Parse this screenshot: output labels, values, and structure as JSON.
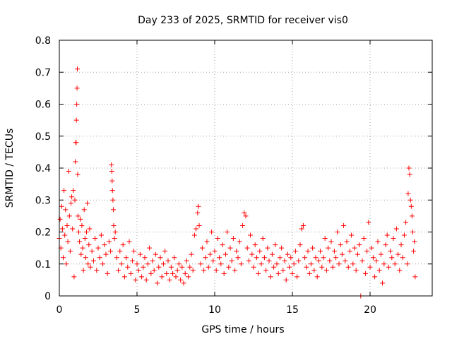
{
  "chart_data": {
    "type": "scatter",
    "title": "Day 233 of 2025, SRMTID for receiver vis0",
    "xlabel": "GPS time / hours",
    "ylabel": "SRMTID / TECUs",
    "xlim": [
      0,
      24
    ],
    "ylim": [
      0,
      0.8
    ],
    "grid": true,
    "marker": "+",
    "series_color": "#ff0000",
    "x_ticks": [
      0,
      5,
      10,
      15,
      20
    ],
    "x_tick_labels": [
      "0",
      "5",
      "10",
      "15",
      "20"
    ],
    "y_ticks": [
      0,
      0.1,
      0.2,
      0.3,
      0.4,
      0.5,
      0.6,
      0.7,
      0.8
    ],
    "y_tick_labels": [
      "0",
      "0.1",
      "0.2",
      "0.3",
      "0.4",
      "0.5",
      "0.6",
      "0.7",
      "0.8"
    ],
    "series": [
      {
        "name": "SRMTID",
        "points": [
          [
            0.0,
            0.18
          ],
          [
            0.05,
            0.24
          ],
          [
            0.1,
            0.15
          ],
          [
            0.15,
            0.28
          ],
          [
            0.2,
            0.21
          ],
          [
            0.25,
            0.12
          ],
          [
            0.3,
            0.33
          ],
          [
            0.35,
            0.19
          ],
          [
            0.4,
            0.27
          ],
          [
            0.45,
            0.1
          ],
          [
            0.5,
            0.22
          ],
          [
            0.55,
            0.17
          ],
          [
            0.6,
            0.39
          ],
          [
            0.65,
            0.25
          ],
          [
            0.7,
            0.14
          ],
          [
            0.75,
            0.29
          ],
          [
            0.8,
            0.31
          ],
          [
            0.85,
            0.21
          ],
          [
            0.9,
            0.33
          ],
          [
            0.95,
            0.06
          ],
          [
            1.0,
            0.3
          ],
          [
            1.03,
            0.42
          ],
          [
            1.06,
            0.48
          ],
          [
            1.08,
            0.48
          ],
          [
            1.1,
            0.55
          ],
          [
            1.12,
            0.6
          ],
          [
            1.14,
            0.65
          ],
          [
            1.16,
            0.71
          ],
          [
            1.18,
            0.38
          ],
          [
            1.2,
            0.25
          ],
          [
            1.25,
            0.2
          ],
          [
            1.3,
            0.17
          ],
          [
            1.35,
            0.24
          ],
          [
            1.4,
            0.13
          ],
          [
            1.45,
            0.22
          ],
          [
            1.5,
            0.15
          ],
          [
            1.55,
            0.08
          ],
          [
            1.6,
            0.27
          ],
          [
            1.65,
            0.18
          ],
          [
            1.7,
            0.12
          ],
          [
            1.75,
            0.2
          ],
          [
            1.8,
            0.29
          ],
          [
            1.85,
            0.1
          ],
          [
            1.9,
            0.16
          ],
          [
            1.95,
            0.21
          ],
          [
            2.0,
            0.09
          ],
          [
            2.1,
            0.14
          ],
          [
            2.2,
            0.11
          ],
          [
            2.3,
            0.18
          ],
          [
            2.4,
            0.08
          ],
          [
            2.5,
            0.15
          ],
          [
            2.6,
            0.12
          ],
          [
            2.7,
            0.19
          ],
          [
            2.8,
            0.1
          ],
          [
            2.9,
            0.16
          ],
          [
            3.0,
            0.13
          ],
          [
            3.1,
            0.07
          ],
          [
            3.2,
            0.17
          ],
          [
            3.3,
            0.14
          ],
          [
            3.35,
            0.41
          ],
          [
            3.38,
            0.39
          ],
          [
            3.4,
            0.36
          ],
          [
            3.42,
            0.33
          ],
          [
            3.45,
            0.3
          ],
          [
            3.48,
            0.27
          ],
          [
            3.5,
            0.22
          ],
          [
            3.55,
            0.18
          ],
          [
            3.6,
            0.2
          ],
          [
            3.7,
            0.12
          ],
          [
            3.8,
            0.08
          ],
          [
            3.9,
            0.14
          ],
          [
            4.0,
            0.1
          ],
          [
            4.1,
            0.16
          ],
          [
            4.2,
            0.06
          ],
          [
            4.3,
            0.12
          ],
          [
            4.4,
            0.09
          ],
          [
            4.5,
            0.17
          ],
          [
            4.6,
            0.07
          ],
          [
            4.7,
            0.11
          ],
          [
            4.8,
            0.14
          ],
          [
            4.9,
            0.05
          ],
          [
            5.0,
            0.1
          ],
          [
            5.1,
            0.08
          ],
          [
            5.2,
            0.13
          ],
          [
            5.3,
            0.06
          ],
          [
            5.4,
            0.09
          ],
          [
            5.5,
            0.12
          ],
          [
            5.6,
            0.05
          ],
          [
            5.7,
            0.1
          ],
          [
            5.8,
            0.15
          ],
          [
            5.9,
            0.07
          ],
          [
            6.0,
            0.11
          ],
          [
            6.1,
            0.08
          ],
          [
            6.2,
            0.13
          ],
          [
            6.3,
            0.04
          ],
          [
            6.4,
            0.09
          ],
          [
            6.5,
            0.12
          ],
          [
            6.6,
            0.06
          ],
          [
            6.7,
            0.1
          ],
          [
            6.8,
            0.14
          ],
          [
            6.9,
            0.07
          ],
          [
            7.0,
            0.11
          ],
          [
            7.1,
            0.05
          ],
          [
            7.2,
            0.09
          ],
          [
            7.3,
            0.07
          ],
          [
            7.4,
            0.12
          ],
          [
            7.5,
            0.06
          ],
          [
            7.6,
            0.08
          ],
          [
            7.7,
            0.1
          ],
          [
            7.8,
            0.05
          ],
          [
            7.9,
            0.09
          ],
          [
            8.0,
            0.04
          ],
          [
            8.1,
            0.07
          ],
          [
            8.2,
            0.11
          ],
          [
            8.3,
            0.06
          ],
          [
            8.4,
            0.09
          ],
          [
            8.5,
            0.13
          ],
          [
            8.6,
            0.08
          ],
          [
            8.7,
            0.19
          ],
          [
            8.8,
            0.21
          ],
          [
            8.9,
            0.26
          ],
          [
            8.95,
            0.28
          ],
          [
            9.0,
            0.22
          ],
          [
            9.1,
            0.1
          ],
          [
            9.2,
            0.15
          ],
          [
            9.3,
            0.08
          ],
          [
            9.4,
            0.12
          ],
          [
            9.5,
            0.17
          ],
          [
            9.6,
            0.09
          ],
          [
            9.7,
            0.13
          ],
          [
            9.8,
            0.2
          ],
          [
            9.9,
            0.11
          ],
          [
            10.0,
            0.14
          ],
          [
            10.1,
            0.08
          ],
          [
            10.2,
            0.18
          ],
          [
            10.3,
            0.12
          ],
          [
            10.4,
            0.1
          ],
          [
            10.5,
            0.16
          ],
          [
            10.6,
            0.07
          ],
          [
            10.7,
            0.13
          ],
          [
            10.8,
            0.2
          ],
          [
            10.9,
            0.09
          ],
          [
            11.0,
            0.15
          ],
          [
            11.1,
            0.11
          ],
          [
            11.2,
            0.18
          ],
          [
            11.3,
            0.08
          ],
          [
            11.4,
            0.14
          ],
          [
            11.5,
            0.12
          ],
          [
            11.6,
            0.17
          ],
          [
            11.7,
            0.1
          ],
          [
            11.8,
            0.22
          ],
          [
            11.9,
            0.26
          ],
          [
            12.0,
            0.25
          ],
          [
            12.1,
            0.15
          ],
          [
            12.2,
            0.11
          ],
          [
            12.3,
            0.19
          ],
          [
            12.4,
            0.13
          ],
          [
            12.5,
            0.09
          ],
          [
            12.6,
            0.16
          ],
          [
            12.7,
            0.12
          ],
          [
            12.8,
            0.07
          ],
          [
            12.9,
            0.14
          ],
          [
            13.0,
            0.1
          ],
          [
            13.1,
            0.18
          ],
          [
            13.2,
            0.12
          ],
          [
            13.3,
            0.08
          ],
          [
            13.4,
            0.15
          ],
          [
            13.5,
            0.11
          ],
          [
            13.6,
            0.06
          ],
          [
            13.7,
            0.13
          ],
          [
            13.8,
            0.09
          ],
          [
            13.9,
            0.16
          ],
          [
            14.0,
            0.1
          ],
          [
            14.1,
            0.07
          ],
          [
            14.2,
            0.12
          ],
          [
            14.3,
            0.15
          ],
          [
            14.4,
            0.08
          ],
          [
            14.5,
            0.11
          ],
          [
            14.6,
            0.05
          ],
          [
            14.7,
            0.13
          ],
          [
            14.8,
            0.09
          ],
          [
            14.9,
            0.12
          ],
          [
            15.0,
            0.07
          ],
          [
            15.1,
            0.1
          ],
          [
            15.2,
            0.14
          ],
          [
            15.3,
            0.06
          ],
          [
            15.4,
            0.11
          ],
          [
            15.5,
            0.16
          ],
          [
            15.6,
            0.21
          ],
          [
            15.7,
            0.22
          ],
          [
            15.8,
            0.12
          ],
          [
            15.9,
            0.09
          ],
          [
            16.0,
            0.14
          ],
          [
            16.1,
            0.07
          ],
          [
            16.2,
            0.1
          ],
          [
            16.3,
            0.15
          ],
          [
            16.4,
            0.08
          ],
          [
            16.5,
            0.12
          ],
          [
            16.6,
            0.06
          ],
          [
            16.7,
            0.11
          ],
          [
            16.8,
            0.14
          ],
          [
            16.9,
            0.09
          ],
          [
            17.0,
            0.12
          ],
          [
            17.1,
            0.18
          ],
          [
            17.2,
            0.08
          ],
          [
            17.3,
            0.15
          ],
          [
            17.4,
            0.11
          ],
          [
            17.5,
            0.17
          ],
          [
            17.6,
            0.09
          ],
          [
            17.7,
            0.14
          ],
          [
            17.8,
            0.12
          ],
          [
            17.9,
            0.2
          ],
          [
            18.0,
            0.1
          ],
          [
            18.1,
            0.16
          ],
          [
            18.2,
            0.13
          ],
          [
            18.3,
            0.22
          ],
          [
            18.4,
            0.11
          ],
          [
            18.5,
            0.17
          ],
          [
            18.6,
            0.09
          ],
          [
            18.7,
            0.14
          ],
          [
            18.8,
            0.19
          ],
          [
            18.9,
            0.1
          ],
          [
            19.0,
            0.15
          ],
          [
            19.1,
            0.08
          ],
          [
            19.2,
            0.13
          ],
          [
            19.3,
            0.16
          ],
          [
            19.4,
            0.0
          ],
          [
            19.5,
            0.11
          ],
          [
            19.6,
            0.18
          ],
          [
            19.7,
            0.07
          ],
          [
            19.8,
            0.14
          ],
          [
            19.9,
            0.23
          ],
          [
            20.0,
            0.09
          ],
          [
            20.1,
            0.15
          ],
          [
            20.2,
            0.12
          ],
          [
            20.3,
            0.06
          ],
          [
            20.4,
            0.11
          ],
          [
            20.5,
            0.17
          ],
          [
            20.6,
            0.08
          ],
          [
            20.7,
            0.13
          ],
          [
            20.8,
            0.04
          ],
          [
            20.9,
            0.1
          ],
          [
            21.0,
            0.16
          ],
          [
            21.1,
            0.19
          ],
          [
            21.2,
            0.09
          ],
          [
            21.3,
            0.14
          ],
          [
            21.4,
            0.12
          ],
          [
            21.5,
            0.18
          ],
          [
            21.6,
            0.1
          ],
          [
            21.7,
            0.21
          ],
          [
            21.8,
            0.13
          ],
          [
            21.9,
            0.08
          ],
          [
            22.0,
            0.16
          ],
          [
            22.1,
            0.12
          ],
          [
            22.2,
            0.19
          ],
          [
            22.3,
            0.23
          ],
          [
            22.4,
            0.1
          ],
          [
            22.45,
            0.32
          ],
          [
            22.5,
            0.4
          ],
          [
            22.55,
            0.38
          ],
          [
            22.6,
            0.3
          ],
          [
            22.65,
            0.28
          ],
          [
            22.7,
            0.25
          ],
          [
            22.75,
            0.2
          ],
          [
            22.8,
            0.14
          ],
          [
            22.85,
            0.17
          ],
          [
            22.9,
            0.06
          ]
        ]
      }
    ]
  }
}
